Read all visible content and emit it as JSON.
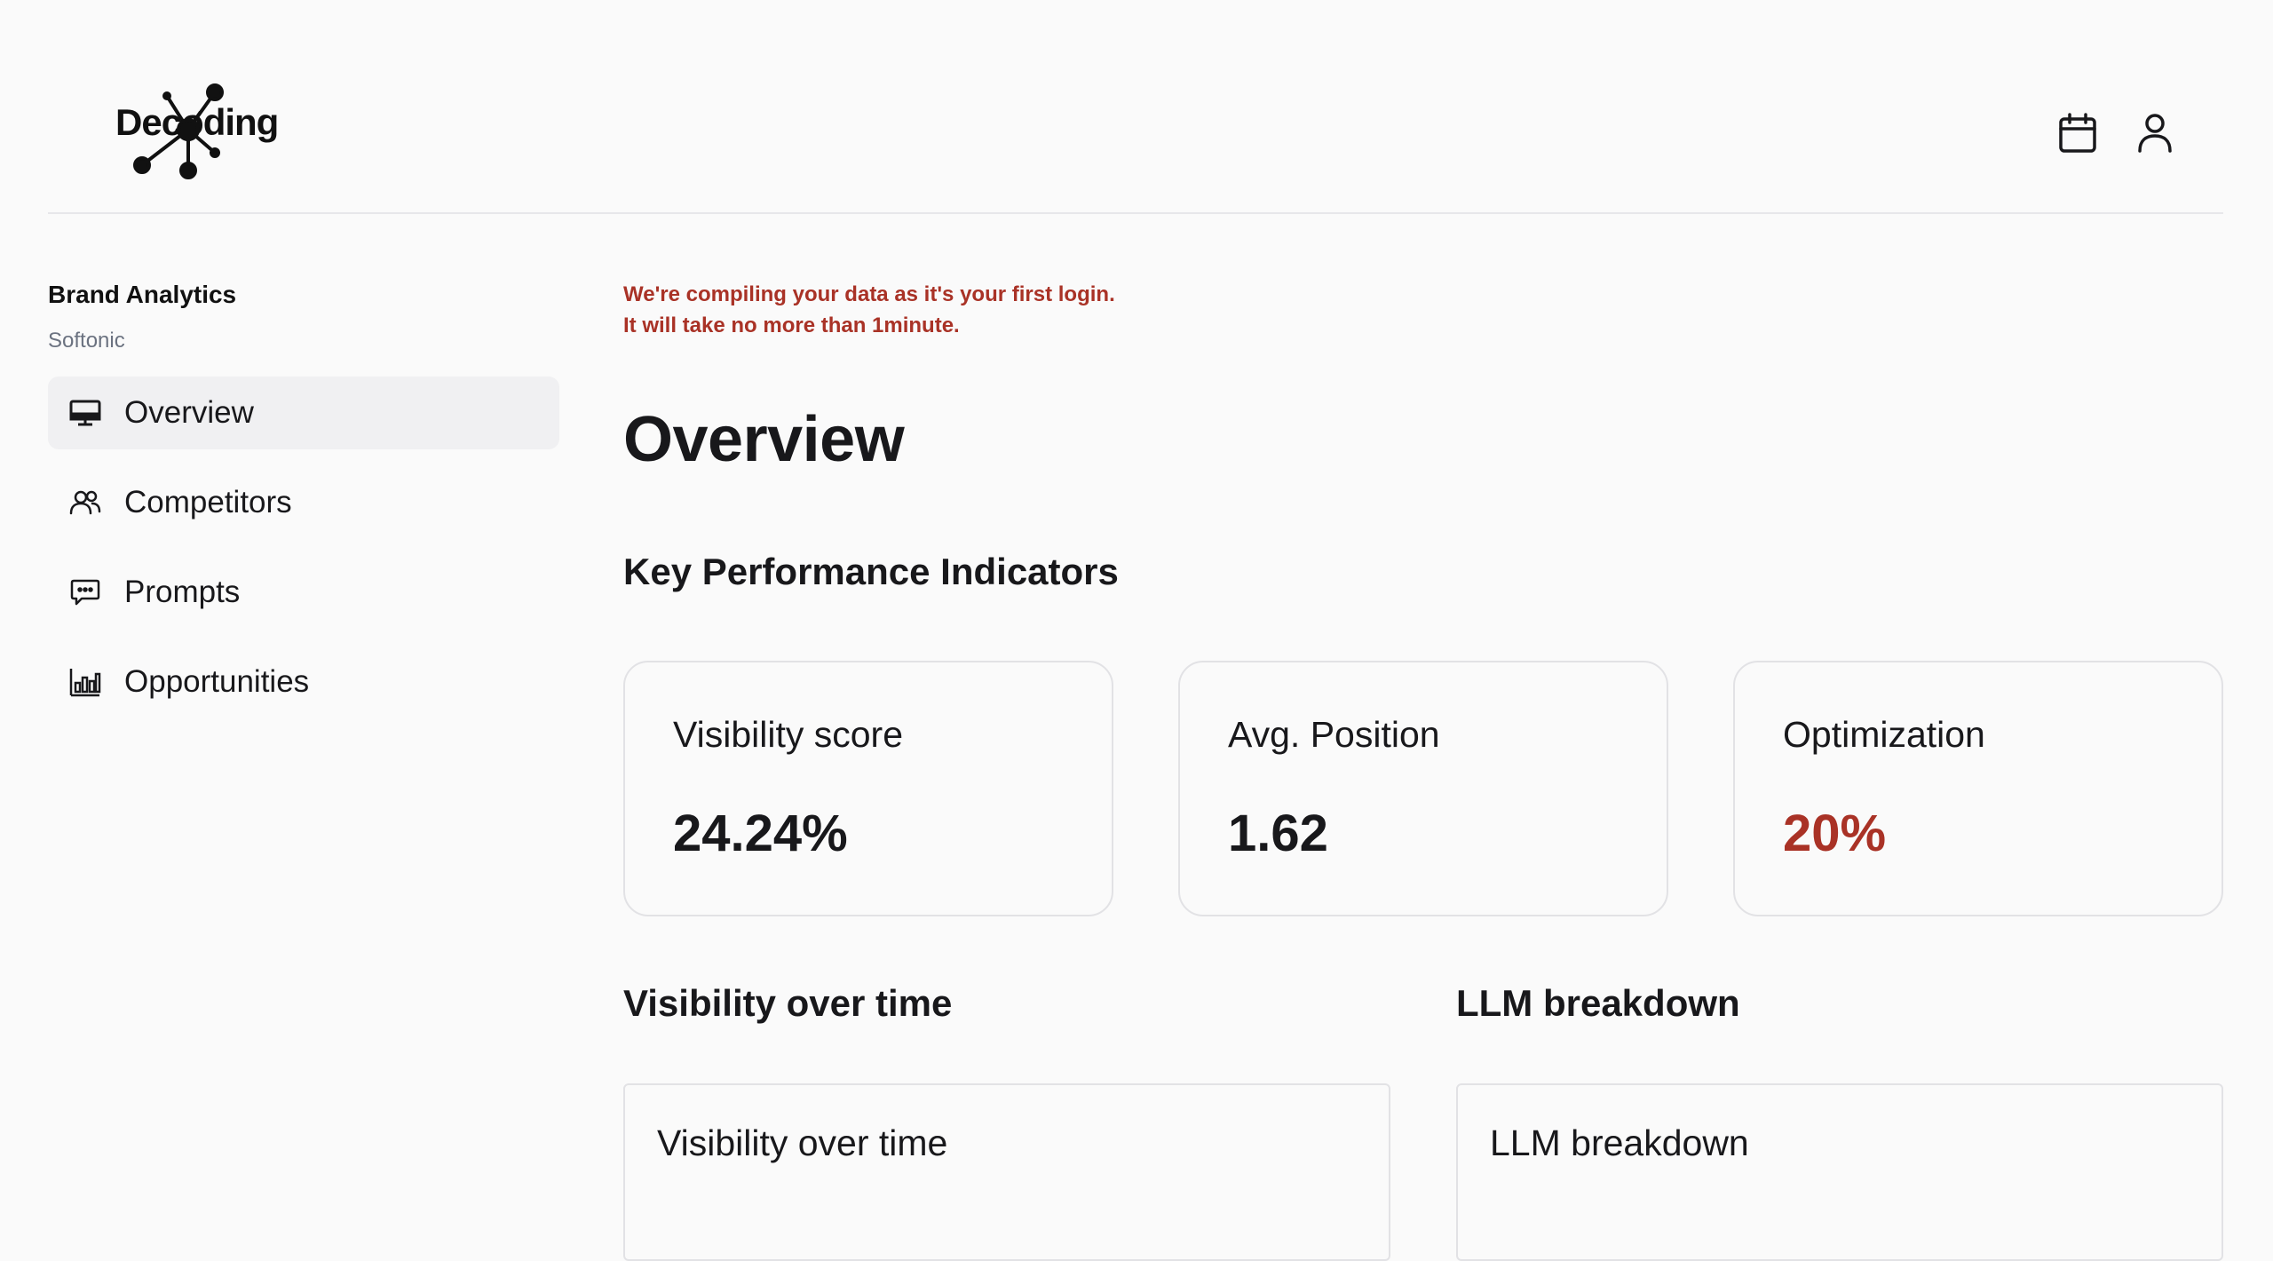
{
  "header": {
    "logo_text": "Decoding",
    "icons": [
      "calendar-icon",
      "user-icon"
    ]
  },
  "sidebar": {
    "title": "Brand Analytics",
    "subtitle": "Softonic",
    "items": [
      {
        "label": "Overview",
        "icon": "monitor-icon",
        "active": true
      },
      {
        "label": "Competitors",
        "icon": "users-icon",
        "active": false
      },
      {
        "label": "Prompts",
        "icon": "chat-icon",
        "active": false
      },
      {
        "label": "Opportunities",
        "icon": "bar-chart-icon",
        "active": false
      }
    ]
  },
  "main": {
    "notice_line1": "We're compiling your data as it's your first login.",
    "notice_line2": "It will take no more than 1minute.",
    "title": "Overview",
    "kpi_section_title": "Key Performance Indicators",
    "kpis": [
      {
        "label": "Visibility score",
        "value": "24.24%"
      },
      {
        "label": "Avg. Position",
        "value": "1.62"
      },
      {
        "label": "Optimization",
        "value": "20%"
      }
    ],
    "panels": [
      {
        "heading": "Visibility over time",
        "box_title": "Visibility over time"
      },
      {
        "heading": "LLM breakdown",
        "box_title": "LLM breakdown"
      }
    ]
  },
  "colors": {
    "alert": "#a93226",
    "active_nav_bg": "#f0f0f2",
    "border": "#e2e2e5"
  }
}
